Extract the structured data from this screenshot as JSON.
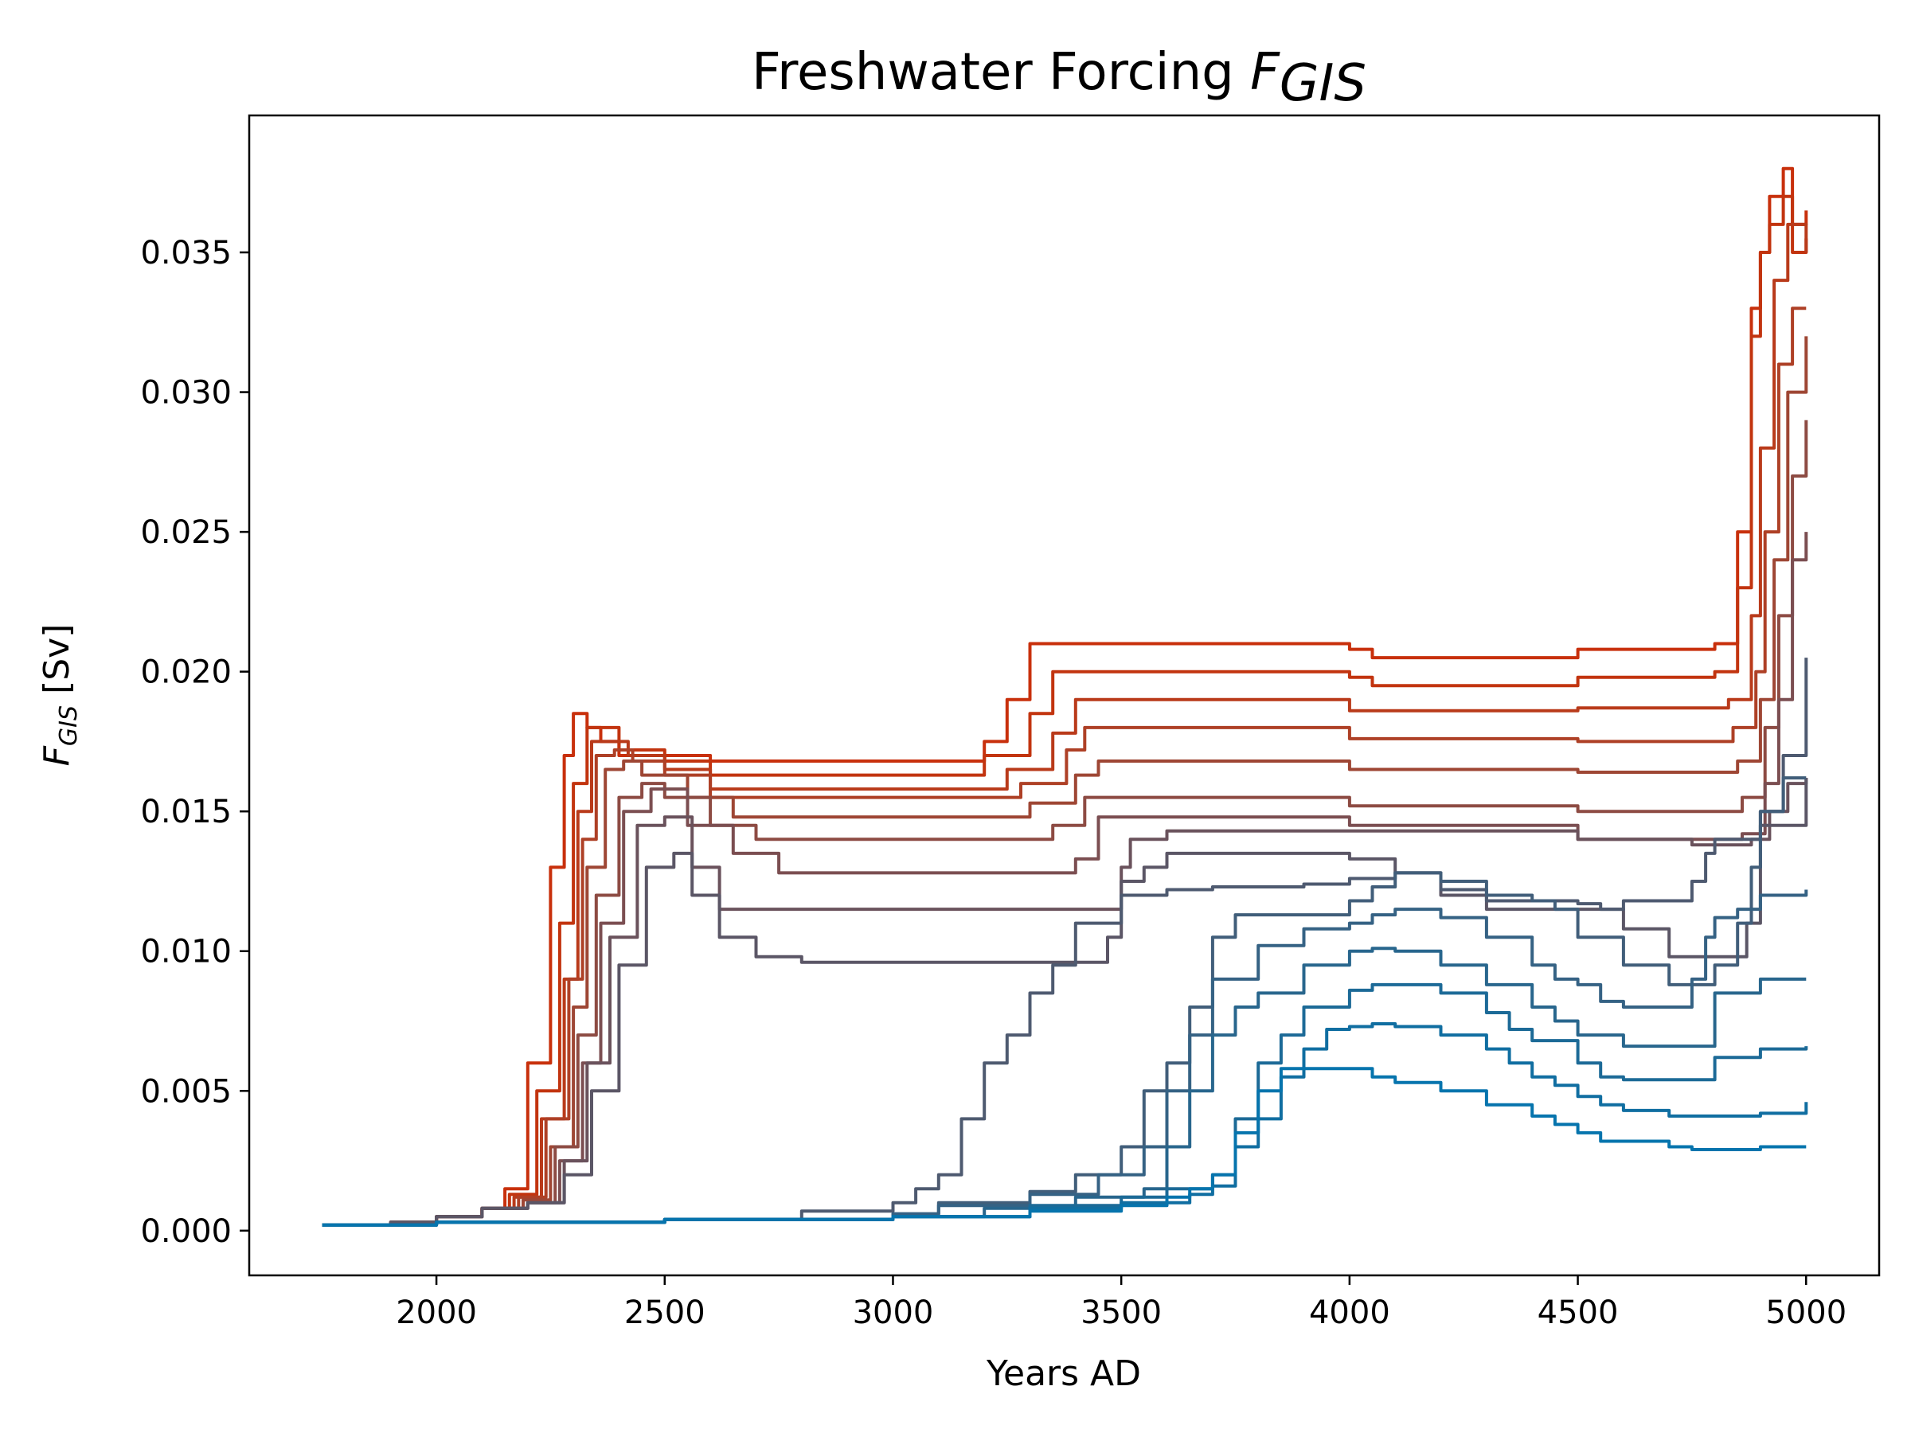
{
  "chart_data": {
    "type": "line",
    "title": "Freshwater Forcing ",
    "title_symbol": "F",
    "title_subscript": "GIS",
    "xlabel": "Years AD",
    "ylabel_symbol": "F",
    "ylabel_subscript": "GIS",
    "ylabel_unit": " [Sv]",
    "xlim": [
      1590,
      5160
    ],
    "ylim": [
      -0.0016,
      0.0399
    ],
    "xticks": [
      2000,
      2500,
      3000,
      3500,
      4000,
      4500,
      5000
    ],
    "xtick_labels": [
      "2000",
      "2500",
      "3000",
      "3500",
      "4000",
      "4500",
      "5000"
    ],
    "yticks": [
      0,
      0.005,
      0.01,
      0.015,
      0.02,
      0.025,
      0.03,
      0.035
    ],
    "ytick_labels": [
      "0.000",
      "0.005",
      "0.010",
      "0.015",
      "0.020",
      "0.025",
      "0.030",
      "0.035"
    ],
    "grid": false,
    "legend": "none",
    "series": [
      {
        "color": "#c8300c",
        "x": [
          1750,
          1900,
          2000,
          2100,
          2150,
          2200,
          2250,
          2280,
          2300,
          2330,
          2360,
          2400,
          2500,
          2600,
          3100,
          3200,
          3250,
          3300,
          3500,
          4000,
          4050,
          4500,
          4750,
          4800,
          4850,
          4880,
          4900,
          4920,
          4950,
          4970,
          5000
        ],
        "y": [
          0.0002,
          0.0003,
          0.0005,
          0.0008,
          0.0015,
          0.006,
          0.013,
          0.017,
          0.0185,
          0.018,
          0.0175,
          0.017,
          0.017,
          0.0168,
          0.0168,
          0.0175,
          0.019,
          0.021,
          0.021,
          0.0208,
          0.0205,
          0.0208,
          0.0208,
          0.021,
          0.025,
          0.033,
          0.035,
          0.037,
          0.038,
          0.036,
          0.0365
        ]
      },
      {
        "color": "#c2340f",
        "x": [
          1750,
          1900,
          2000,
          2100,
          2160,
          2220,
          2270,
          2300,
          2330,
          2360,
          2400,
          2500,
          2600,
          3100,
          3200,
          3300,
          3350,
          3500,
          4000,
          4050,
          4500,
          4750,
          4800,
          4850,
          4880,
          4900,
          4920,
          4950,
          4970,
          5000
        ],
        "y": [
          0.0002,
          0.0003,
          0.0005,
          0.0008,
          0.0013,
          0.005,
          0.011,
          0.016,
          0.018,
          0.018,
          0.0172,
          0.0168,
          0.0163,
          0.0163,
          0.017,
          0.0185,
          0.02,
          0.02,
          0.0198,
          0.0195,
          0.0198,
          0.0198,
          0.02,
          0.023,
          0.032,
          0.035,
          0.036,
          0.037,
          0.035,
          0.0355
        ]
      },
      {
        "color": "#b93a1a",
        "x": [
          1750,
          1900,
          2000,
          2100,
          2170,
          2230,
          2280,
          2310,
          2340,
          2380,
          2420,
          2500,
          2600,
          3150,
          3250,
          3350,
          3400,
          3500,
          4000,
          4500,
          4750,
          4830,
          4880,
          4900,
          4930,
          4960,
          5000
        ],
        "y": [
          0.0002,
          0.0003,
          0.0005,
          0.0008,
          0.0012,
          0.004,
          0.009,
          0.015,
          0.0175,
          0.0175,
          0.017,
          0.0165,
          0.0158,
          0.0158,
          0.0165,
          0.0178,
          0.019,
          0.019,
          0.0186,
          0.0187,
          0.0187,
          0.019,
          0.022,
          0.028,
          0.034,
          0.036,
          0.035
        ]
      },
      {
        "color": "#ae4026",
        "x": [
          1750,
          1900,
          2000,
          2100,
          2180,
          2240,
          2290,
          2320,
          2350,
          2390,
          2430,
          2500,
          2600,
          3150,
          3280,
          3380,
          3420,
          3500,
          4000,
          4500,
          4750,
          4840,
          4890,
          4910,
          4940,
          4970,
          5000
        ],
        "y": [
          0.0002,
          0.0003,
          0.0005,
          0.0008,
          0.0012,
          0.004,
          0.009,
          0.014,
          0.017,
          0.0172,
          0.0168,
          0.0163,
          0.0155,
          0.0155,
          0.016,
          0.0172,
          0.018,
          0.018,
          0.0176,
          0.0175,
          0.0175,
          0.018,
          0.02,
          0.025,
          0.031,
          0.033,
          0.033
        ]
      },
      {
        "color": "#9e4634",
        "x": [
          1750,
          1900,
          2000,
          2100,
          2190,
          2250,
          2300,
          2330,
          2370,
          2410,
          2450,
          2550,
          2650,
          3200,
          3300,
          3400,
          3450,
          3500,
          4000,
          4500,
          4750,
          4850,
          4900,
          4930,
          4960,
          5000
        ],
        "y": [
          0.0002,
          0.0003,
          0.0005,
          0.0008,
          0.0011,
          0.003,
          0.008,
          0.013,
          0.0165,
          0.0168,
          0.0163,
          0.0155,
          0.0148,
          0.0148,
          0.0153,
          0.0163,
          0.0168,
          0.0168,
          0.0165,
          0.0164,
          0.0164,
          0.0168,
          0.019,
          0.024,
          0.03,
          0.032
        ]
      },
      {
        "color": "#8d4b43",
        "x": [
          1750,
          1900,
          2000,
          2100,
          2200,
          2260,
          2310,
          2350,
          2400,
          2450,
          2500,
          2600,
          2700,
          3200,
          3350,
          3420,
          3450,
          3500,
          4000,
          4500,
          4750,
          4860,
          4910,
          4940,
          4970,
          5000
        ],
        "y": [
          0.0002,
          0.0003,
          0.0005,
          0.0008,
          0.001,
          0.003,
          0.007,
          0.012,
          0.0155,
          0.016,
          0.0155,
          0.0145,
          0.014,
          0.014,
          0.0145,
          0.0155,
          0.0155,
          0.0155,
          0.0152,
          0.015,
          0.015,
          0.0155,
          0.018,
          0.022,
          0.027,
          0.029
        ]
      },
      {
        "color": "#7b4e51",
        "x": [
          1750,
          1900,
          2000,
          2100,
          2200,
          2270,
          2320,
          2360,
          2410,
          2470,
          2550,
          2650,
          2750,
          3300,
          3400,
          3450,
          3500,
          4000,
          4500,
          4750,
          4860,
          4910,
          4940,
          4970,
          5000
        ],
        "y": [
          0.0002,
          0.0003,
          0.0005,
          0.0008,
          0.001,
          0.0025,
          0.006,
          0.011,
          0.015,
          0.0158,
          0.0145,
          0.0135,
          0.0128,
          0.0128,
          0.0133,
          0.0148,
          0.0148,
          0.0145,
          0.014,
          0.014,
          0.0142,
          0.016,
          0.019,
          0.024,
          0.025
        ]
      },
      {
        "color": "#6a525c",
        "x": [
          1750,
          1900,
          2000,
          2100,
          2200,
          2280,
          2330,
          2380,
          2440,
          2500,
          2560,
          2620,
          3300,
          3450,
          3500,
          3520,
          3600,
          4000,
          4500,
          4750,
          4850,
          4880,
          4920,
          4960,
          5000
        ],
        "y": [
          0.0002,
          0.0003,
          0.0005,
          0.0008,
          0.001,
          0.0025,
          0.006,
          0.0105,
          0.0145,
          0.0148,
          0.013,
          0.0115,
          0.0115,
          0.0115,
          0.013,
          0.014,
          0.0143,
          0.0143,
          0.014,
          0.0138,
          0.0138,
          0.014,
          0.015,
          0.016,
          0.0162
        ]
      },
      {
        "color": "#5b5666",
        "x": [
          1750,
          1900,
          2000,
          2100,
          2200,
          2280,
          2340,
          2400,
          2460,
          2520,
          2560,
          2620,
          2700,
          2800,
          3300,
          3430,
          3470,
          3500,
          3550,
          3600,
          3700,
          4000,
          4100,
          4200,
          4300,
          4500,
          4600,
          4700,
          4800,
          4850,
          4870,
          4900,
          5000
        ],
        "y": [
          0.0002,
          0.0003,
          0.0005,
          0.0008,
          0.001,
          0.002,
          0.005,
          0.0095,
          0.013,
          0.0135,
          0.012,
          0.0105,
          0.0098,
          0.0096,
          0.0096,
          0.0096,
          0.0105,
          0.0125,
          0.013,
          0.0135,
          0.0135,
          0.0133,
          0.0128,
          0.012,
          0.0115,
          0.0115,
          0.0108,
          0.0098,
          0.0098,
          0.0098,
          0.011,
          0.0145,
          0.0162
        ]
      },
      {
        "color": "#4e5a70",
        "x": [
          1750,
          2000,
          2500,
          2800,
          3000,
          3050,
          3100,
          3150,
          3200,
          3250,
          3300,
          3350,
          3400,
          3500,
          3600,
          3700,
          3800,
          3900,
          4000,
          4100,
          4200,
          4300,
          4500,
          4550,
          4600,
          4700,
          4750,
          4780,
          4800,
          4850,
          4900,
          4950,
          5000
        ],
        "y": [
          0.0002,
          0.0003,
          0.0004,
          0.0007,
          0.001,
          0.0015,
          0.002,
          0.004,
          0.006,
          0.007,
          0.0085,
          0.0095,
          0.011,
          0.012,
          0.0122,
          0.0123,
          0.0123,
          0.0124,
          0.0126,
          0.0128,
          0.0122,
          0.0118,
          0.0117,
          0.0115,
          0.0118,
          0.0118,
          0.0125,
          0.0135,
          0.014,
          0.014,
          0.015,
          0.017,
          0.0205
        ]
      },
      {
        "color": "#415e7a",
        "x": [
          1750,
          2000,
          2500,
          3000,
          3100,
          3300,
          3400,
          3500,
          3550,
          3600,
          3650,
          3700,
          3750,
          3800,
          3900,
          4000,
          4050,
          4100,
          4200,
          4300,
          4400,
          4450,
          4500,
          4600,
          4700,
          4750,
          4800,
          4850,
          4880,
          4900,
          4950,
          5000
        ],
        "y": [
          0.0002,
          0.0003,
          0.0004,
          0.0006,
          0.001,
          0.0014,
          0.002,
          0.003,
          0.005,
          0.006,
          0.008,
          0.0105,
          0.0113,
          0.0113,
          0.0113,
          0.0118,
          0.0123,
          0.0128,
          0.0125,
          0.012,
          0.0118,
          0.0115,
          0.0105,
          0.0095,
          0.0088,
          0.0088,
          0.0095,
          0.011,
          0.013,
          0.015,
          0.0162,
          0.0162
        ]
      },
      {
        "color": "#356284",
        "x": [
          1750,
          2000,
          2500,
          3000,
          3100,
          3300,
          3450,
          3550,
          3600,
          3650,
          3700,
          3800,
          3900,
          4000,
          4050,
          4100,
          4200,
          4300,
          4400,
          4450,
          4500,
          4550,
          4600,
          4700,
          4750,
          4780,
          4800,
          4850,
          4900,
          5000
        ],
        "y": [
          0.0002,
          0.0003,
          0.0004,
          0.0006,
          0.0009,
          0.0013,
          0.002,
          0.003,
          0.005,
          0.007,
          0.009,
          0.0102,
          0.0108,
          0.011,
          0.0113,
          0.0115,
          0.0112,
          0.0105,
          0.0095,
          0.009,
          0.0088,
          0.0082,
          0.008,
          0.008,
          0.009,
          0.0105,
          0.0112,
          0.0115,
          0.012,
          0.0122
        ]
      },
      {
        "color": "#28668d",
        "x": [
          1750,
          2000,
          2500,
          3000,
          3200,
          3400,
          3550,
          3600,
          3650,
          3700,
          3750,
          3800,
          3900,
          4000,
          4050,
          4100,
          4200,
          4300,
          4400,
          4450,
          4500,
          4600,
          4700,
          4750,
          4800,
          4900,
          5000
        ],
        "y": [
          0.0002,
          0.0003,
          0.0004,
          0.0005,
          0.0008,
          0.0012,
          0.0015,
          0.003,
          0.005,
          0.007,
          0.008,
          0.0085,
          0.0095,
          0.01,
          0.0101,
          0.01,
          0.0095,
          0.0088,
          0.008,
          0.0075,
          0.007,
          0.0066,
          0.0066,
          0.0066,
          0.0085,
          0.009,
          0.009
        ]
      },
      {
        "color": "#1c6a97",
        "x": [
          1750,
          2000,
          2500,
          3000,
          3300,
          3500,
          3600,
          3700,
          3750,
          3800,
          3850,
          3900,
          4000,
          4050,
          4100,
          4200,
          4300,
          4350,
          4400,
          4500,
          4550,
          4600,
          4700,
          4750,
          4800,
          4900,
          5000
        ],
        "y": [
          0.0002,
          0.0003,
          0.0004,
          0.0005,
          0.0009,
          0.0012,
          0.0015,
          0.002,
          0.004,
          0.006,
          0.007,
          0.008,
          0.0086,
          0.0088,
          0.0088,
          0.0085,
          0.0078,
          0.0072,
          0.0068,
          0.006,
          0.0055,
          0.0054,
          0.0054,
          0.0054,
          0.0062,
          0.0065,
          0.0066
        ]
      },
      {
        "color": "#106ea1",
        "x": [
          1750,
          2000,
          2500,
          3000,
          3300,
          3500,
          3650,
          3700,
          3750,
          3800,
          3850,
          3900,
          3950,
          4000,
          4050,
          4100,
          4200,
          4300,
          4350,
          4400,
          4450,
          4500,
          4550,
          4600,
          4700,
          4800,
          4900,
          4960,
          5000
        ],
        "y": [
          0.0002,
          0.0003,
          0.0004,
          0.0005,
          0.0008,
          0.001,
          0.0013,
          0.0016,
          0.003,
          0.004,
          0.0055,
          0.0065,
          0.0072,
          0.0073,
          0.0074,
          0.0073,
          0.007,
          0.0065,
          0.006,
          0.0055,
          0.0052,
          0.0048,
          0.0045,
          0.0043,
          0.0041,
          0.0041,
          0.0042,
          0.0042,
          0.0046
        ]
      },
      {
        "color": "#0674ad",
        "x": [
          1750,
          2000,
          2500,
          3000,
          3300,
          3500,
          3600,
          3650,
          3700,
          3750,
          3800,
          3850,
          3900,
          4000,
          4050,
          4100,
          4200,
          4300,
          4400,
          4450,
          4500,
          4550,
          4600,
          4700,
          4750,
          4800,
          4900,
          5000
        ],
        "y": [
          0.0002,
          0.0003,
          0.0004,
          0.0005,
          0.0007,
          0.0009,
          0.0012,
          0.0015,
          0.002,
          0.0035,
          0.005,
          0.0058,
          0.0058,
          0.0058,
          0.0055,
          0.0053,
          0.005,
          0.0045,
          0.0041,
          0.0038,
          0.0035,
          0.0032,
          0.0032,
          0.003,
          0.0029,
          0.0029,
          0.003,
          0.003
        ]
      }
    ]
  }
}
